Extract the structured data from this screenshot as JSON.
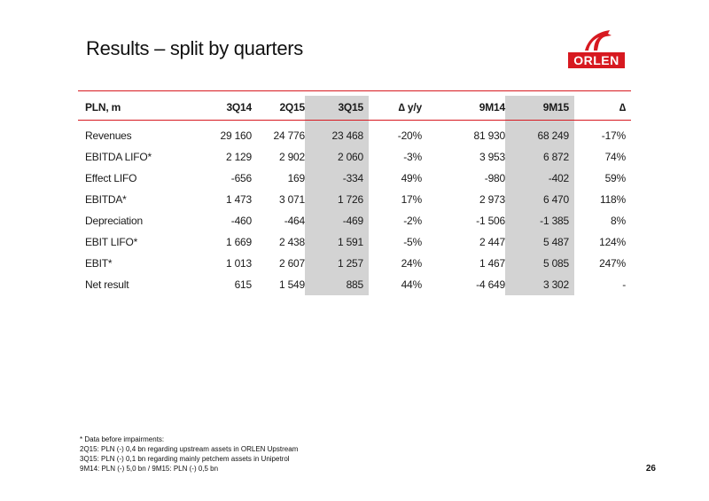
{
  "title": "Results – split by quarters",
  "logo": {
    "wordmark": "ORLEN"
  },
  "colors": {
    "accent": "#d71920",
    "shade": "#d3d3d3"
  },
  "table": {
    "headers": [
      "PLN, m",
      "3Q14",
      "2Q15",
      "3Q15",
      "∆ y/y",
      "9M14",
      "9M15",
      "∆"
    ],
    "rows": [
      [
        "Revenues",
        "29 160",
        "24 776",
        "23 468",
        "-20%",
        "81 930",
        "68 249",
        "-17%"
      ],
      [
        "EBITDA LIFO*",
        "2 129",
        "2 902",
        "2 060",
        "-3%",
        "3 953",
        "6 872",
        "74%"
      ],
      [
        "Effect LIFO",
        "-656",
        "169",
        "-334",
        "49%",
        "-980",
        "-402",
        "59%"
      ],
      [
        "EBITDA*",
        "1 473",
        "3 071",
        "1 726",
        "17%",
        "2 973",
        "6 470",
        "118%"
      ],
      [
        "Depreciation",
        "-460",
        "-464",
        "-469",
        "-2%",
        "-1 506",
        "-1 385",
        "8%"
      ],
      [
        "EBIT LIFO*",
        "1 669",
        "2 438",
        "1 591",
        "-5%",
        "2 447",
        "5 487",
        "124%"
      ],
      [
        "EBIT*",
        "1 013",
        "2 607",
        "1 257",
        "24%",
        "1 467",
        "5 085",
        "247%"
      ],
      [
        "Net result",
        "615",
        "1 549",
        "885",
        "44%",
        "-4 649",
        "3 302",
        "-"
      ]
    ]
  },
  "footnotes": [
    "* Data before impairments:",
    "2Q15: PLN (-) 0,4 bn regarding upstream assets in ORLEN Upstream",
    "3Q15: PLN (-) 0,1 bn regarding mainly petchem assets in Unipetrol",
    "9M14: PLN (-) 5,0 bn / 9M15: PLN (-) 0,5 bn"
  ],
  "page_number": "26"
}
